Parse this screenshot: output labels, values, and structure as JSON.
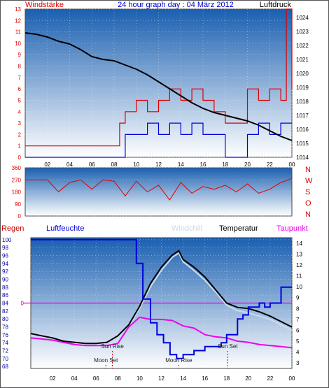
{
  "title": "24 hour graph day : 04 März 2012",
  "colors": {
    "wind": "#dd0000",
    "gust": "#0000dd",
    "pressure": "#000000",
    "winddir": "#dd0000",
    "humidity": "#0000dd",
    "temperature": "#000000",
    "windchill": "#c6dcef",
    "dewpoint": "#ee00ee",
    "rain": "#cc0000",
    "bg_top": "#1a5fb0",
    "bg_bottom": "#ffffff"
  },
  "chart_data": [
    {
      "type": "line",
      "panel": "wind-pressure",
      "left_axis_label": "Windstärke",
      "right_axis_label": "Luftdruck",
      "left_ticks": [
        0,
        1,
        2,
        3,
        4,
        5,
        6,
        7,
        8,
        9,
        10,
        11,
        12,
        13
      ],
      "right_ticks": [
        1014,
        1015,
        1016,
        1017,
        1018,
        1019,
        1020,
        1021,
        1022,
        1023,
        1024
      ],
      "x_ticks": [
        "02",
        "04",
        "06",
        "08",
        "10",
        "12",
        "14",
        "16",
        "18",
        "20",
        "22",
        "00"
      ],
      "ylim_left": [
        0,
        13
      ],
      "ylim_right": [
        1014,
        1024.6
      ],
      "series": [
        {
          "key": "pressure",
          "x": [
            0,
            1,
            2,
            3,
            4,
            5,
            6,
            7,
            8,
            9,
            10,
            11,
            12,
            13,
            14,
            15,
            16,
            17,
            18,
            19,
            20,
            21,
            22,
            23,
            24
          ],
          "y": [
            1022.9,
            1022.8,
            1022.6,
            1022.3,
            1022.1,
            1021.7,
            1021.2,
            1021.0,
            1020.9,
            1020.6,
            1020.3,
            1019.9,
            1019.4,
            1018.9,
            1018.4,
            1017.9,
            1017.5,
            1017.2,
            1017.0,
            1016.8,
            1016.6,
            1016.3,
            1015.9,
            1015.5,
            1015.2
          ]
        },
        {
          "key": "wind",
          "x": [
            0,
            1,
            2,
            3,
            4,
            5,
            6,
            7,
            7.5,
            8,
            8.5,
            9,
            10,
            11,
            12,
            13,
            14,
            15,
            16,
            17,
            18,
            19,
            20,
            21,
            22,
            23,
            23.5,
            24
          ],
          "y": [
            1,
            1,
            1,
            1,
            1,
            1,
            1,
            1,
            1,
            1,
            3,
            4,
            5,
            4,
            5,
            6,
            5,
            6,
            5,
            4,
            3,
            3,
            6,
            5,
            6,
            5,
            13,
            6
          ]
        },
        {
          "key": "gust",
          "x": [
            0,
            8.5,
            9,
            10,
            11,
            12,
            13,
            14,
            15,
            16,
            17,
            18,
            19,
            20,
            21,
            22,
            23,
            24
          ],
          "y": [
            0,
            0,
            2,
            2,
            3,
            2,
            3,
            2,
            3,
            2,
            2,
            0,
            0,
            2,
            3,
            2,
            3,
            3
          ]
        }
      ]
    },
    {
      "type": "line",
      "panel": "wind-direction",
      "left_ticks": [
        0,
        90,
        180,
        270,
        360
      ],
      "right_labels": [
        "N",
        "W",
        "S",
        "O",
        "N"
      ],
      "ylim": [
        0,
        360
      ],
      "series": [
        {
          "key": "winddir",
          "x": [
            0,
            2,
            3,
            4,
            5,
            6,
            7,
            8,
            9,
            10,
            11,
            12,
            13,
            14,
            15,
            16,
            17,
            18,
            19,
            20,
            21,
            22,
            23,
            24
          ],
          "y": [
            270,
            270,
            180,
            250,
            270,
            200,
            270,
            260,
            150,
            260,
            180,
            230,
            120,
            250,
            170,
            220,
            200,
            230,
            180,
            240,
            170,
            200,
            250,
            280
          ]
        }
      ]
    },
    {
      "type": "line",
      "panel": "humidity-temperature",
      "legend": [
        "Regen",
        "Luftfeuchte",
        "Windchill",
        "Temperatur",
        "Taupunkt"
      ],
      "left_ticks": [
        68,
        70,
        72,
        74,
        76,
        78,
        80,
        82,
        84,
        86,
        88,
        90,
        92,
        94,
        96,
        98,
        100
      ],
      "rain_tick": "0",
      "right_ticks": [
        3,
        4,
        5,
        6,
        7,
        8,
        9,
        10,
        11,
        12,
        13,
        14
      ],
      "x_ticks": [
        "02",
        "04",
        "06",
        "08",
        "10",
        "12",
        "14",
        "16",
        "18",
        "20",
        "22",
        "00"
      ],
      "ylim_left": [
        67.5,
        100.5
      ],
      "ylim_right": [
        2.5,
        14.5
      ],
      "annotations": [
        {
          "text": "Moon Set",
          "x": 6.9
        },
        {
          "text": "Sun Rise",
          "x": 7.5
        },
        {
          "text": "Moon Rise",
          "x": 13.6
        },
        {
          "text": "Sun Set",
          "x": 18.1
        }
      ],
      "series": [
        {
          "key": "humidity",
          "x": [
            0,
            4,
            8,
            9,
            9.7,
            10.3,
            11,
            11.6,
            12.2,
            12.8,
            13.4,
            14,
            15,
            16,
            17,
            17.5,
            18,
            19,
            19.5,
            20,
            21,
            21.5,
            22,
            23,
            24
          ],
          "y": [
            100,
            100,
            100,
            100,
            94,
            85,
            79,
            76,
            74,
            71,
            70,
            71,
            72,
            73,
            73,
            74,
            76,
            80,
            81,
            83,
            84,
            83,
            84,
            88,
            88
          ]
        },
        {
          "key": "temperature",
          "x": [
            0,
            1,
            2,
            3,
            4,
            5,
            6,
            7,
            8,
            9,
            10,
            11,
            12,
            13,
            13.6,
            14,
            15,
            16,
            17,
            18,
            19,
            20,
            21,
            22,
            23,
            24
          ],
          "y": [
            5.7,
            5.5,
            5.3,
            5.0,
            4.9,
            4.8,
            4.8,
            4.9,
            5.5,
            6.5,
            8.2,
            10.3,
            11.8,
            12.9,
            13.3,
            12.5,
            11.8,
            10.9,
            9.7,
            8.5,
            8.1,
            8.0,
            7.7,
            7.3,
            6.8,
            6.3
          ]
        },
        {
          "key": "windchill",
          "x": [
            0,
            1,
            2,
            3,
            4,
            5,
            6,
            7,
            8,
            9,
            10,
            11,
            12,
            13,
            13.6,
            14,
            15,
            16,
            17,
            18,
            19,
            20,
            21,
            22,
            23,
            24
          ],
          "y": [
            5.5,
            5.3,
            5.0,
            4.8,
            4.7,
            4.6,
            4.6,
            4.7,
            5.3,
            6.3,
            8.0,
            10.0,
            11.5,
            12.7,
            13.1,
            12.3,
            11.5,
            10.6,
            9.5,
            8.3,
            7.8,
            7.6,
            7.3,
            7.0,
            6.5,
            6.0
          ]
        },
        {
          "key": "dewpoint",
          "x": [
            0,
            1,
            2,
            3,
            4,
            5,
            6,
            7,
            8,
            9,
            10,
            11,
            12,
            13,
            14,
            15,
            16,
            17,
            18,
            19,
            20,
            21,
            22,
            23,
            24
          ],
          "y": [
            5.3,
            5.2,
            5.1,
            4.9,
            4.7,
            4.6,
            4.6,
            4.6,
            4.8,
            6.3,
            7.2,
            7.0,
            7.0,
            6.9,
            6.4,
            6.2,
            5.6,
            5.4,
            5.3,
            5.0,
            4.9,
            4.7,
            4.6,
            4.5,
            4.4
          ]
        }
      ]
    }
  ]
}
